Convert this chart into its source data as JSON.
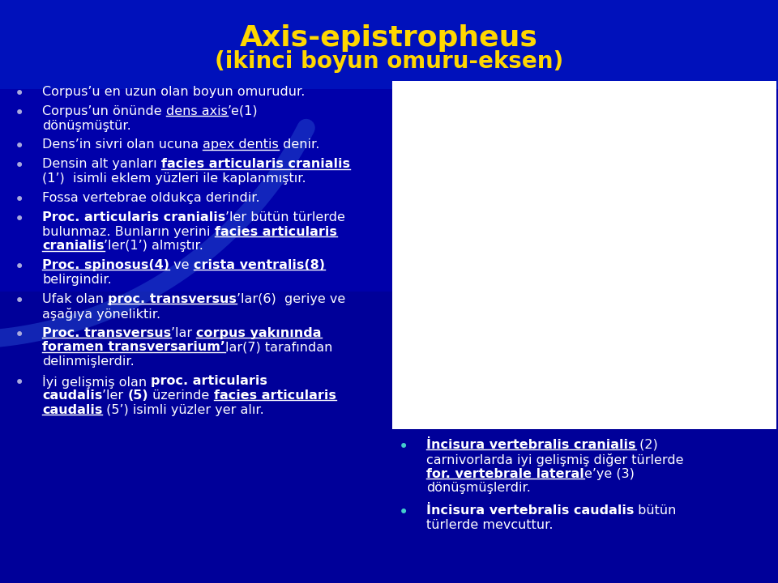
{
  "title_line1": "Axis-epistropheus",
  "title_line2": "(ikinci boyun omuru-eksen)",
  "title_color": "#FFD700",
  "bg_color": "#0000AA",
  "bullet_dot_color_left": "#AAAADD",
  "bullet_dot_color_right": "#44CCCC",
  "text_color": "#FFFFFF",
  "left_bullets": [
    [
      {
        "t": "Corpus’u en uzun olan boyun omurudur.",
        "b": false,
        "u": false
      }
    ],
    [
      {
        "t": "Corpus’un önünde ",
        "b": false,
        "u": false
      },
      {
        "t": "dens axis",
        "b": false,
        "u": true
      },
      {
        "t": "’e(1)",
        "b": false,
        "u": false
      },
      {
        "t": "\ndönüşmüştür.",
        "b": false,
        "u": false
      }
    ],
    [
      {
        "t": "Dens’in sivri olan ucuna ",
        "b": false,
        "u": false
      },
      {
        "t": "apex dentis",
        "b": false,
        "u": true
      },
      {
        "t": " denir.",
        "b": false,
        "u": false
      }
    ],
    [
      {
        "t": "Densin alt yanları ",
        "b": false,
        "u": false
      },
      {
        "t": "facies articularis cranialis",
        "b": true,
        "u": true
      },
      {
        "t": "\n(1’)  isimli eklem yüzleri ile kaplanmıştır.",
        "b": false,
        "u": false
      }
    ],
    [
      {
        "t": "Fossa vertebrae oldukça derindir.",
        "b": false,
        "u": false
      }
    ],
    [
      {
        "t": "Proc. articularis cranialis",
        "b": true,
        "u": false
      },
      {
        "t": "’ler bütün türlerde",
        "b": false,
        "u": false
      },
      {
        "t": "\nbulunmaz. Bunların yerini ",
        "b": false,
        "u": false
      },
      {
        "t": "facies articularis",
        "b": true,
        "u": true
      },
      {
        "t": "\n",
        "b": false,
        "u": false
      },
      {
        "t": "cranialis",
        "b": true,
        "u": true
      },
      {
        "t": "’ler(1’) almıştır.",
        "b": false,
        "u": false
      }
    ],
    [
      {
        "t": "Proc. spinosus(4)",
        "b": true,
        "u": true
      },
      {
        "t": " ve ",
        "b": false,
        "u": false
      },
      {
        "t": "crista ventralis(8)",
        "b": true,
        "u": true
      },
      {
        "t": "\nbelirgindir.",
        "b": false,
        "u": false
      }
    ],
    [
      {
        "t": "Ufak olan ",
        "b": false,
        "u": false
      },
      {
        "t": "proc. transversus",
        "b": true,
        "u": true
      },
      {
        "t": "’lar(6)  geriye ve",
        "b": false,
        "u": false
      },
      {
        "t": "\naşağıya yöneliktir.",
        "b": false,
        "u": false
      }
    ],
    [
      {
        "t": "Proc. transversus",
        "b": true,
        "u": true
      },
      {
        "t": "’lar ",
        "b": false,
        "u": false
      },
      {
        "t": "corpus yakınında",
        "b": true,
        "u": true
      },
      {
        "t": "\n",
        "b": false,
        "u": false
      },
      {
        "t": "foramen transversarium’",
        "b": true,
        "u": true
      },
      {
        "t": "lar(7) tarafından",
        "b": false,
        "u": false
      },
      {
        "t": "\ndelinmişlerdir.",
        "b": false,
        "u": false
      }
    ],
    [
      {
        "t": "İyi gelişmiş olan ",
        "b": false,
        "u": false
      },
      {
        "t": "proc. articularis",
        "b": true,
        "u": false
      },
      {
        "t": "\n",
        "b": false,
        "u": false
      },
      {
        "t": "caudalis",
        "b": true,
        "u": false
      },
      {
        "t": "’ler ",
        "b": false,
        "u": false
      },
      {
        "t": "(5)",
        "b": true,
        "u": false
      },
      {
        "t": " üzerinde ",
        "b": false,
        "u": false
      },
      {
        "t": "facies articularis",
        "b": true,
        "u": true
      },
      {
        "t": "\n",
        "b": false,
        "u": false
      },
      {
        "t": "caudalis",
        "b": true,
        "u": true
      },
      {
        "t": " (5’) isimli yüzler yer alır.",
        "b": false,
        "u": false
      }
    ]
  ],
  "right_bullets": [
    [
      {
        "t": "İncisura vertebralis cranialis",
        "b": true,
        "u": true
      },
      {
        "t": " (2)",
        "b": false,
        "u": false
      },
      {
        "t": "\ncarnivorlarda iyi gelişmiş diğer türlerde",
        "b": false,
        "u": false
      },
      {
        "t": "\n",
        "b": false,
        "u": false
      },
      {
        "t": "for. vertebrale lateral",
        "b": true,
        "u": true
      },
      {
        "t": "e’ye (3)",
        "b": false,
        "u": false
      },
      {
        "t": "\ndönüşmüşlerdir.",
        "b": false,
        "u": false
      }
    ],
    [
      {
        "t": "İncisura vertebralis caudalis",
        "b": true,
        "u": false
      },
      {
        "t": " bütün",
        "b": false,
        "u": false
      },
      {
        "t": "\ntürlerde mevcuttur.",
        "b": false,
        "u": false
      }
    ]
  ]
}
